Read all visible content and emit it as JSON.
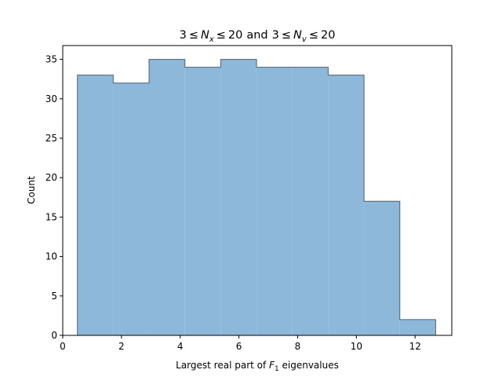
{
  "chart_data": {
    "type": "bar",
    "subtype": "histogram",
    "title": {
      "prefix": "3",
      "leq": "≤",
      "var1": "N",
      "sub1": "x",
      "bound": "20",
      "and": "and",
      "prefix2": "3",
      "var2": "N",
      "sub2": "v",
      "bound2": "20"
    },
    "xlabel": {
      "pre": "Largest real part of ",
      "var": "F",
      "sub": "1",
      "post": " eigenvalues"
    },
    "ylabel": "Count",
    "xlim": [
      0,
      13.25
    ],
    "ylim": [
      0,
      36.75
    ],
    "xticks": [
      "0",
      "2",
      "4",
      "6",
      "8",
      "10",
      "12"
    ],
    "yticks": [
      "0",
      "5",
      "10",
      "15",
      "20",
      "25",
      "30",
      "35"
    ],
    "bin_edges": [
      0.5,
      1.72,
      2.94,
      4.16,
      5.38,
      6.6,
      7.82,
      9.04,
      10.26,
      11.48,
      12.7
    ],
    "values": [
      33,
      32,
      35,
      34,
      35,
      34,
      34,
      33,
      17,
      2
    ],
    "fill_color": "#8db8d9",
    "edge_color": "#4f5f70",
    "grid": false
  }
}
